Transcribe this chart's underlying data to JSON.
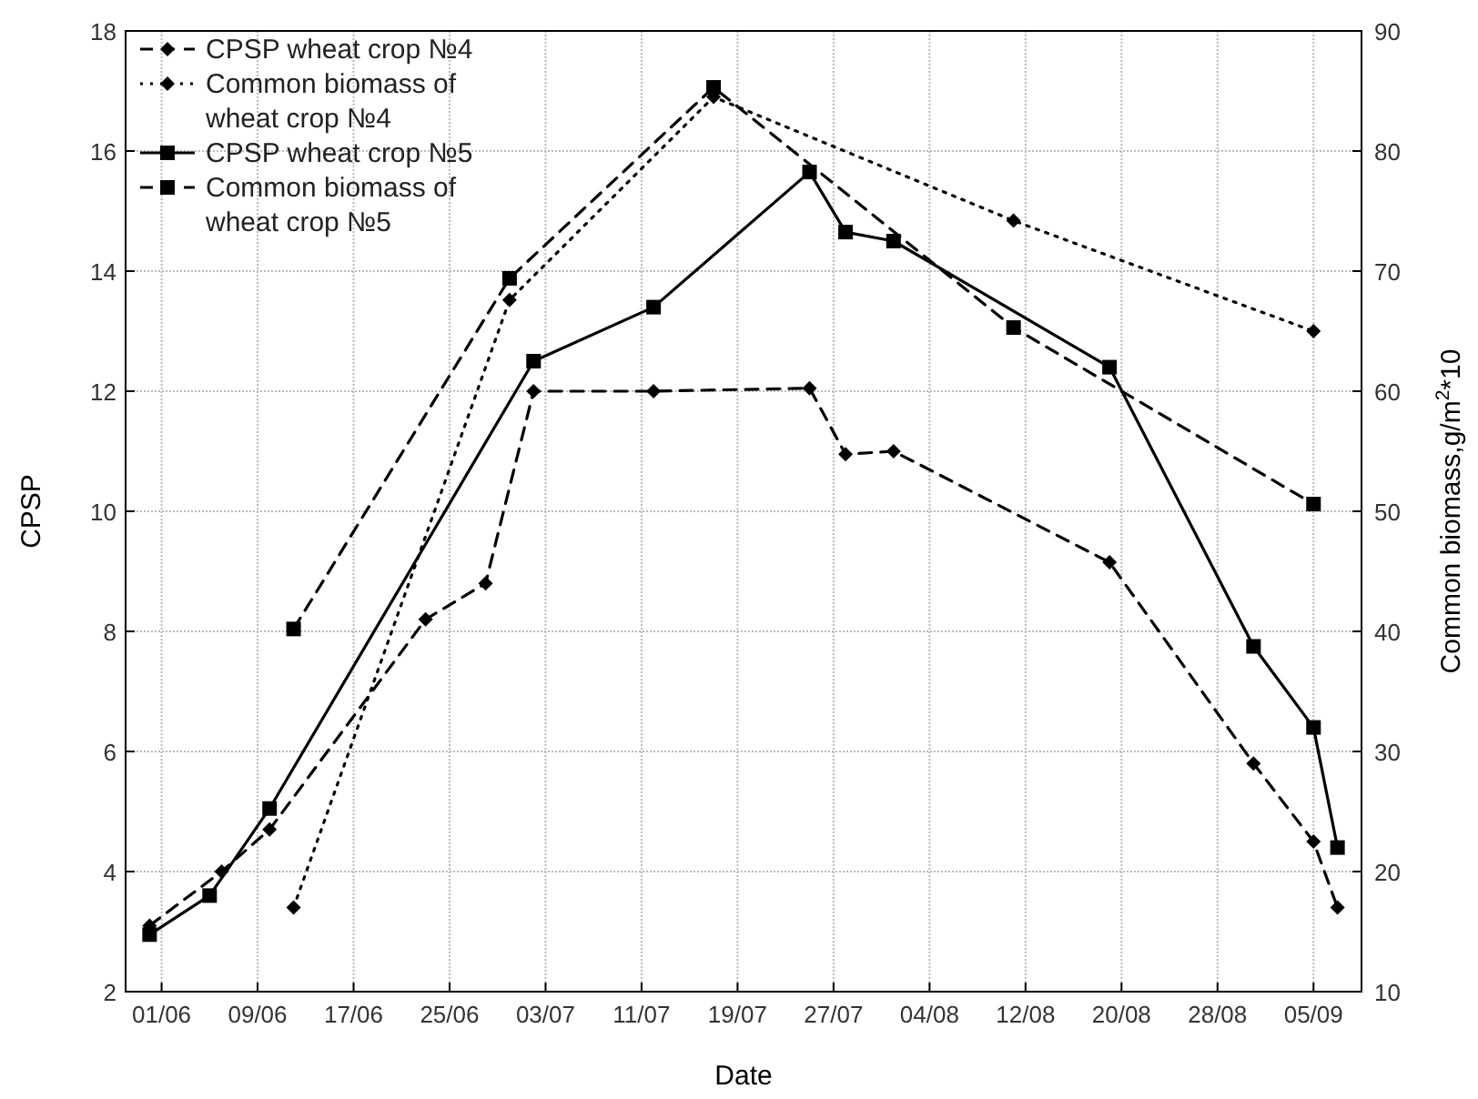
{
  "chart_data": {
    "type": "line",
    "xlabel": "Date",
    "ylabel": "CPSP",
    "y2label": "Common biomass,g/m$^{2}$*10",
    "xlim": [
      "--05-29",
      "--09-09"
    ],
    "xticks": [
      {
        "value": "--06-01",
        "label": "01/06"
      },
      {
        "value": "--06-09",
        "label": "09/06"
      },
      {
        "value": "--06-17",
        "label": "17/06"
      },
      {
        "value": "--06-25",
        "label": "25/06"
      },
      {
        "value": "--07-03",
        "label": "03/07"
      },
      {
        "value": "--07-11",
        "label": "11/07"
      },
      {
        "value": "--07-19",
        "label": "19/07"
      },
      {
        "value": "--07-27",
        "label": "27/07"
      },
      {
        "value": "--08-04",
        "label": "04/08"
      },
      {
        "value": "--08-12",
        "label": "12/08"
      },
      {
        "value": "--08-20",
        "label": "20/08"
      },
      {
        "value": "--08-28",
        "label": "28/08"
      },
      {
        "value": "--09-05",
        "label": "05/09"
      }
    ],
    "ylim": [
      2,
      18
    ],
    "yticks": [
      2,
      4,
      6,
      8,
      10,
      12,
      14,
      16,
      18
    ],
    "y2lim": [
      10,
      90
    ],
    "y2ticks": [
      10,
      20,
      30,
      40,
      50,
      60,
      70,
      80,
      90
    ],
    "grid": true,
    "legend": "top left",
    "series": [
      {
        "name": "CPSP wheat crop №4",
        "color": "#000000",
        "marker": "diamond",
        "line_style": "dashed",
        "x": [
          "--05-31",
          "--06-06",
          "--06-10",
          "--06-23",
          "--06-28",
          "--07-02",
          "--07-12",
          "--07-25",
          "--07-28",
          "--08-01",
          "--08-19",
          "--08-31",
          "--09-05",
          "--09-07"
        ],
        "values": [
          3.1,
          4.0,
          4.7,
          8.2,
          8.8,
          12.0,
          12.0,
          12.05,
          10.95,
          11.0,
          9.15,
          5.8,
          4.5,
          3.4
        ]
      },
      {
        "name": "Common biomass of wheat crop №4",
        "color": "#000000",
        "marker": "diamond",
        "line_style": "dotted",
        "axis": "y2",
        "x": [
          "--06-12",
          "--06-30",
          "--07-17",
          "--08-11",
          "--09-05"
        ],
        "values": [
          17,
          67.6,
          84.5,
          74.2,
          65
        ]
      },
      {
        "name": "CPSP wheat crop №5",
        "color": "#000000",
        "marker": "square",
        "line_style": "solid",
        "x": [
          "--05-31",
          "--06-05",
          "--06-10",
          "--07-02",
          "--07-12",
          "--07-25",
          "--07-28",
          "--08-01",
          "--08-19",
          "--08-31",
          "--09-05",
          "--09-07"
        ],
        "values": [
          2.95,
          3.6,
          5.05,
          12.5,
          13.4,
          15.65,
          14.65,
          14.5,
          12.4,
          7.75,
          6.4,
          4.4
        ]
      },
      {
        "name": "Common biomass of wheat crop №5",
        "color": "#000000",
        "marker": "square",
        "line_style": "dashed",
        "axis": "y2",
        "x": [
          "--06-12",
          "--06-30",
          "--07-17",
          "--08-11",
          "--09-05"
        ],
        "values": [
          40.2,
          69.4,
          85.3,
          65.3,
          50.6
        ]
      }
    ]
  }
}
